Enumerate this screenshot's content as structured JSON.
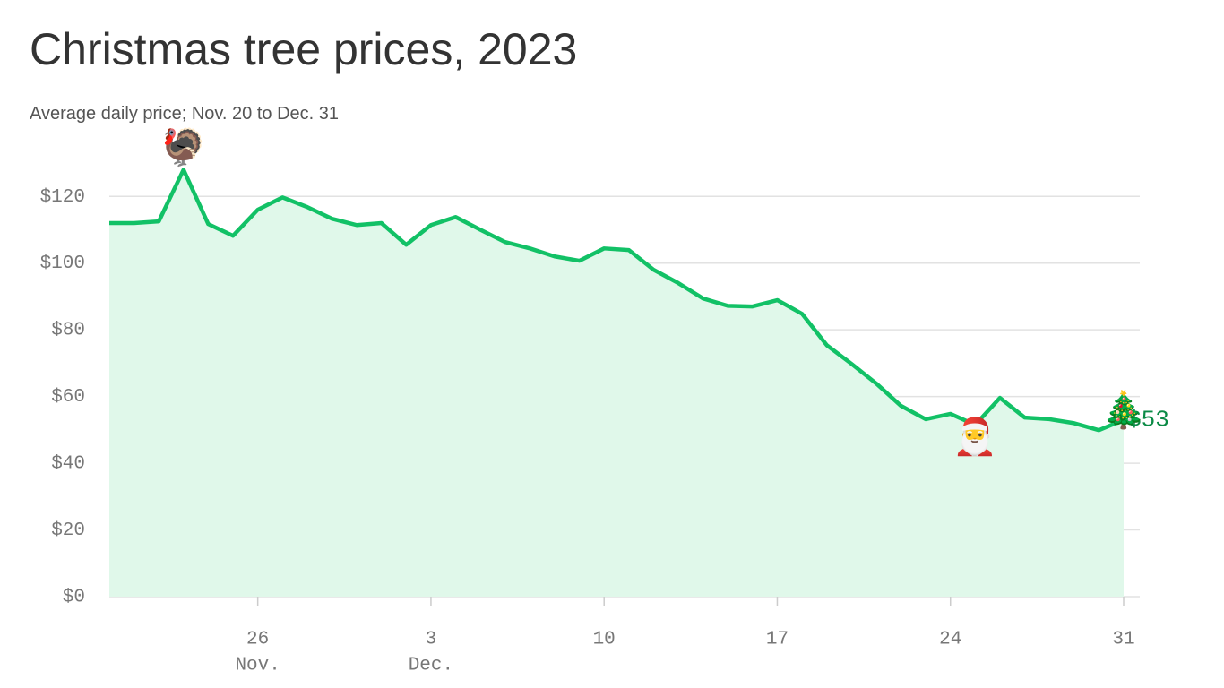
{
  "chart_data": {
    "type": "area",
    "title": "Christmas tree prices, 2023",
    "subtitle": "Average daily price; Nov. 20 to Dec. 31",
    "x": [
      "2023-11-20",
      "2023-11-21",
      "2023-11-22",
      "2023-11-23",
      "2023-11-24",
      "2023-11-25",
      "2023-11-26",
      "2023-11-27",
      "2023-11-28",
      "2023-11-29",
      "2023-11-30",
      "2023-12-01",
      "2023-12-02",
      "2023-12-03",
      "2023-12-04",
      "2023-12-05",
      "2023-12-06",
      "2023-12-07",
      "2023-12-08",
      "2023-12-09",
      "2023-12-10",
      "2023-12-11",
      "2023-12-12",
      "2023-12-13",
      "2023-12-14",
      "2023-12-15",
      "2023-12-16",
      "2023-12-17",
      "2023-12-18",
      "2023-12-19",
      "2023-12-20",
      "2023-12-21",
      "2023-12-22",
      "2023-12-23",
      "2023-12-24",
      "2023-12-25",
      "2023-12-26",
      "2023-12-27",
      "2023-12-28",
      "2023-12-29",
      "2023-12-30",
      "2023-12-31"
    ],
    "series": [
      {
        "name": "Average daily price",
        "color": "#12c166",
        "fill": "#e0f8ea",
        "values": [
          112,
          112,
          112.5,
          128,
          111.7,
          108.2,
          116,
          119.7,
          116.8,
          113.3,
          111.4,
          112,
          105.5,
          111.4,
          113.8,
          110,
          106.3,
          104.4,
          102,
          100.7,
          104.4,
          103.9,
          98,
          94,
          89.4,
          87.2,
          87,
          88.9,
          84.8,
          75.4,
          69.8,
          63.9,
          57.2,
          53.2,
          54.8,
          51.5,
          59.6,
          53.7,
          53.2,
          52,
          49.9,
          53
        ],
        "value_labels": [
          null,
          null,
          null,
          null,
          null,
          null,
          null,
          null,
          null,
          null,
          null,
          null,
          null,
          null,
          null,
          null,
          null,
          null,
          null,
          null,
          null,
          null,
          null,
          null,
          null,
          null,
          null,
          null,
          null,
          null,
          null,
          null,
          null,
          null,
          null,
          null,
          null,
          null,
          null,
          null,
          null,
          "$53"
        ]
      }
    ],
    "xlim": [
      "2023-11-20",
      "2023-12-31"
    ],
    "xticks": [
      {
        "value": "2023-11-26",
        "label": "26"
      },
      {
        "value": "2023-12-03",
        "label": "3"
      },
      {
        "value": "2023-12-10",
        "label": "10"
      },
      {
        "value": "2023-12-17",
        "label": "17"
      },
      {
        "value": "2023-12-24",
        "label": "24"
      },
      {
        "value": "2023-12-31",
        "label": "31"
      }
    ],
    "month_labels": [
      {
        "value": "2023-11-26",
        "label": "Nov."
      },
      {
        "value": "2023-12-03",
        "label": "Dec."
      }
    ],
    "ylim": [
      0,
      130
    ],
    "yticks": [
      {
        "value": 0,
        "label": "$0"
      },
      {
        "value": 20,
        "label": "$20"
      },
      {
        "value": 40,
        "label": "$40"
      },
      {
        "value": 60,
        "label": "$60"
      },
      {
        "value": 80,
        "label": "$80"
      },
      {
        "value": 100,
        "label": "$100"
      },
      {
        "value": 120,
        "label": "$120"
      }
    ],
    "grid": true,
    "annotations": [
      {
        "text": "🦃",
        "x": "2023-11-23"
      },
      {
        "text": "🎅",
        "x": "2023-12-25"
      },
      {
        "text": "🎄",
        "x": "2023-12-31"
      }
    ]
  }
}
